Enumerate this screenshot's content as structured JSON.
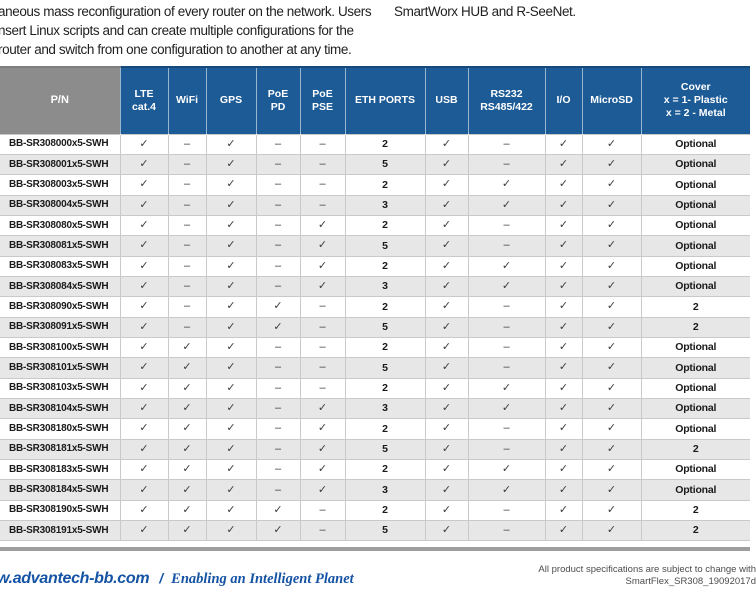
{
  "intro": {
    "left_lines": [
      "aneous mass reconfiguration of every router on the network. Users",
      "nsert Linux scripts and can create multiple configurations for the",
      "router and switch from one configuration to another at any time."
    ],
    "right_text": "SmartWorx HUB and R-SeeNet."
  },
  "table": {
    "columns": [
      {
        "key": "pn",
        "label": "P/N"
      },
      {
        "key": "lte",
        "label": "LTE\ncat.4"
      },
      {
        "key": "wifi",
        "label": "WiFi"
      },
      {
        "key": "gps",
        "label": "GPS"
      },
      {
        "key": "poe_pd",
        "label": "PoE\nPD"
      },
      {
        "key": "poe_pse",
        "label": "PoE\nPSE"
      },
      {
        "key": "eth",
        "label": "ETH PORTS"
      },
      {
        "key": "usb",
        "label": "USB"
      },
      {
        "key": "rs",
        "label": "RS232\nRS485/422"
      },
      {
        "key": "io",
        "label": "I/O"
      },
      {
        "key": "microsd",
        "label": "MicroSD"
      },
      {
        "key": "cover",
        "label": "Cover\nx = 1- Plastic\nx = 2 - Metal"
      }
    ],
    "check_glyph": "✓",
    "dash_glyph": "–",
    "rows": [
      [
        "BB-SR308000x5-SWH",
        "✓",
        "–",
        "✓",
        "–",
        "–",
        "2",
        "✓",
        "–",
        "✓",
        "✓",
        "Optional"
      ],
      [
        "BB-SR308001x5-SWH",
        "✓",
        "–",
        "✓",
        "–",
        "–",
        "5",
        "✓",
        "–",
        "✓",
        "✓",
        "Optional"
      ],
      [
        "BB-SR308003x5-SWH",
        "✓",
        "–",
        "✓",
        "–",
        "–",
        "2",
        "✓",
        "✓",
        "✓",
        "✓",
        "Optional"
      ],
      [
        "BB-SR308004x5-SWH",
        "✓",
        "–",
        "✓",
        "–",
        "–",
        "3",
        "✓",
        "✓",
        "✓",
        "✓",
        "Optional"
      ],
      [
        "BB-SR308080x5-SWH",
        "✓",
        "–",
        "✓",
        "–",
        "✓",
        "2",
        "✓",
        "–",
        "✓",
        "✓",
        "Optional"
      ],
      [
        "BB-SR308081x5-SWH",
        "✓",
        "–",
        "✓",
        "–",
        "✓",
        "5",
        "✓",
        "–",
        "✓",
        "✓",
        "Optional"
      ],
      [
        "BB-SR308083x5-SWH",
        "✓",
        "–",
        "✓",
        "–",
        "✓",
        "2",
        "✓",
        "✓",
        "✓",
        "✓",
        "Optional"
      ],
      [
        "BB-SR308084x5-SWH",
        "✓",
        "–",
        "✓",
        "–",
        "✓",
        "3",
        "✓",
        "✓",
        "✓",
        "✓",
        "Optional"
      ],
      [
        "BB-SR308090x5-SWH",
        "✓",
        "–",
        "✓",
        "✓",
        "–",
        "2",
        "✓",
        "–",
        "✓",
        "✓",
        "2"
      ],
      [
        "BB-SR308091x5-SWH",
        "✓",
        "–",
        "✓",
        "✓",
        "–",
        "5",
        "✓",
        "–",
        "✓",
        "✓",
        "2"
      ],
      [
        "BB-SR308100x5-SWH",
        "✓",
        "✓",
        "✓",
        "–",
        "–",
        "2",
        "✓",
        "–",
        "✓",
        "✓",
        "Optional"
      ],
      [
        "BB-SR308101x5-SWH",
        "✓",
        "✓",
        "✓",
        "–",
        "–",
        "5",
        "✓",
        "–",
        "✓",
        "✓",
        "Optional"
      ],
      [
        "BB-SR308103x5-SWH",
        "✓",
        "✓",
        "✓",
        "–",
        "–",
        "2",
        "✓",
        "✓",
        "✓",
        "✓",
        "Optional"
      ],
      [
        "BB-SR308104x5-SWH",
        "✓",
        "✓",
        "✓",
        "–",
        "✓",
        "3",
        "✓",
        "✓",
        "✓",
        "✓",
        "Optional"
      ],
      [
        "BB-SR308180x5-SWH",
        "✓",
        "✓",
        "✓",
        "–",
        "✓",
        "2",
        "✓",
        "–",
        "✓",
        "✓",
        "Optional"
      ],
      [
        "BB-SR308181x5-SWH",
        "✓",
        "✓",
        "✓",
        "–",
        "✓",
        "5",
        "✓",
        "–",
        "✓",
        "✓",
        "2"
      ],
      [
        "BB-SR308183x5-SWH",
        "✓",
        "✓",
        "✓",
        "–",
        "✓",
        "2",
        "✓",
        "✓",
        "✓",
        "✓",
        "Optional"
      ],
      [
        "BB-SR308184x5-SWH",
        "✓",
        "✓",
        "✓",
        "–",
        "✓",
        "3",
        "✓",
        "✓",
        "✓",
        "✓",
        "Optional"
      ],
      [
        "BB-SR308190x5-SWH",
        "✓",
        "✓",
        "✓",
        "✓",
        "–",
        "2",
        "✓",
        "–",
        "✓",
        "✓",
        "2"
      ],
      [
        "BB-SR308191x5-SWH",
        "✓",
        "✓",
        "✓",
        "✓",
        "–",
        "5",
        "✓",
        "–",
        "✓",
        "✓",
        "2"
      ]
    ]
  },
  "footer": {
    "website": "w.advantech-bb.com",
    "separator": "/",
    "tagline": "Enabling an Intelligent Planet",
    "note_line1": "All product specifications are subject to change with",
    "note_line2": "SmartFlex_SR308_19092017d"
  },
  "colors": {
    "header_blue": "#1d5b96",
    "header_gray": "#8c8c8c",
    "row_alt_gray": "#e7e7e7",
    "footer_blue": "#1553a4",
    "footer_rule_gray": "#9e9e9e"
  }
}
